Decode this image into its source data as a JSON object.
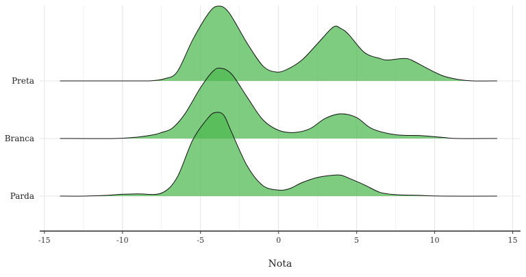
{
  "chart_data": {
    "type": "ridgeline",
    "xlabel": "Nota",
    "ylabel": "",
    "xlim": [
      -15.3,
      15.5
    ],
    "x_ticks": [
      -15,
      -10,
      -5,
      0,
      5,
      10,
      15
    ],
    "grid": true,
    "fill_color": "#4cb84f",
    "fill_opacity": 0.72,
    "line_color": "#111111",
    "categories": [
      "Preta",
      "Branca",
      "Parda"
    ],
    "series": [
      {
        "name": "Preta",
        "x": [
          -14,
          -9,
          -8,
          -7.3,
          -6.5,
          -5.5,
          -4.5,
          -3.9,
          -3.2,
          -2,
          -1,
          -0.2,
          0.5,
          1.5,
          2.5,
          3.5,
          4,
          4.5,
          5.5,
          6.5,
          7,
          8,
          8.5,
          9.5,
          10.5,
          11.5,
          12.5,
          14
        ],
        "density": [
          0,
          0,
          0.005,
          0.03,
          0.12,
          0.55,
          0.9,
          1.0,
          0.92,
          0.5,
          0.2,
          0.12,
          0.15,
          0.28,
          0.5,
          0.72,
          0.7,
          0.62,
          0.38,
          0.3,
          0.28,
          0.3,
          0.28,
          0.17,
          0.07,
          0.02,
          0,
          0
        ]
      },
      {
        "name": "Branca",
        "x": [
          -14,
          -10.5,
          -9,
          -8,
          -7.5,
          -6.8,
          -6,
          -5,
          -4.2,
          -3.7,
          -3,
          -2,
          -1,
          0,
          1,
          2,
          3,
          4,
          5,
          6,
          7.5,
          9,
          10.5,
          11.5,
          14
        ],
        "density": [
          0,
          0,
          0.02,
          0.05,
          0.08,
          0.14,
          0.33,
          0.68,
          0.9,
          0.94,
          0.86,
          0.55,
          0.25,
          0.11,
          0.08,
          0.13,
          0.27,
          0.33,
          0.28,
          0.13,
          0.05,
          0.04,
          0.015,
          0,
          0
        ]
      },
      {
        "name": "Parda",
        "x": [
          -14,
          -12.5,
          -11,
          -10,
          -9,
          -7.5,
          -6.5,
          -5.5,
          -4.5,
          -4,
          -3.5,
          -3,
          -2,
          -1,
          0,
          0.7,
          1.5,
          2.5,
          3.5,
          4,
          4.5,
          5.5,
          6.5,
          7.5,
          9,
          10.5,
          14
        ],
        "density": [
          0,
          0,
          0.01,
          0.025,
          0.03,
          0.04,
          0.25,
          0.75,
          1.05,
          1.12,
          1.08,
          0.85,
          0.4,
          0.14,
          0.08,
          0.1,
          0.18,
          0.25,
          0.28,
          0.28,
          0.24,
          0.15,
          0.05,
          0.02,
          0.01,
          0,
          0
        ]
      }
    ]
  }
}
